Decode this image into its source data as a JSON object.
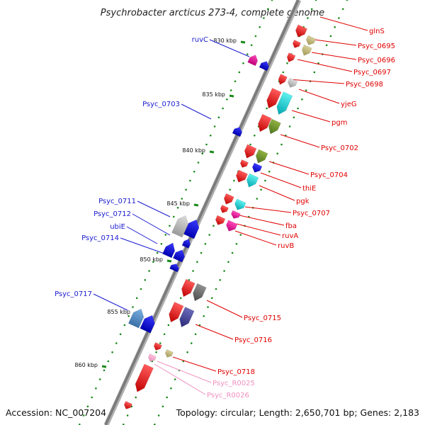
{
  "title": "Psychrobacter arcticus 273-4, complete genome",
  "footer": {
    "accession": "Accession: NC_007204",
    "topology": "Topology: circular; Length: 2,650,701 bp; Genes: 2,183"
  },
  "ticks": [
    "830 kbp",
    "835 kbp",
    "840 kbp",
    "845 kbp",
    "850 kbp",
    "855 kbp",
    "860 kbp"
  ],
  "colors": {
    "forward_label": "#e00000",
    "reverse_label": "#1a1ad0",
    "rna_label": "#f090c0",
    "backbone": "#808080",
    "tick_dots": "#1a8a1a"
  },
  "reverse_labels": [
    {
      "text": "ruvC",
      "color": "#1a1ad0"
    },
    {
      "text": "Psyc_0703",
      "color": "#1a1ad0"
    },
    {
      "text": "Psyc_0711",
      "color": "#1a1ad0"
    },
    {
      "text": "Psyc_0712",
      "color": "#1a1ad0"
    },
    {
      "text": "ubiE",
      "color": "#1a1ad0"
    },
    {
      "text": "Psyc_0714",
      "color": "#1a1ad0"
    },
    {
      "text": "Psyc_0717",
      "color": "#1a1ad0"
    }
  ],
  "forward_labels": [
    {
      "text": "glnS",
      "color": "#e00000"
    },
    {
      "text": "Psyc_0695",
      "color": "#e00000"
    },
    {
      "text": "Psyc_0696",
      "color": "#e00000"
    },
    {
      "text": "Psyc_0697",
      "color": "#e00000"
    },
    {
      "text": "Psyc_0698",
      "color": "#e00000"
    },
    {
      "text": "yjeG",
      "color": "#e00000"
    },
    {
      "text": "pgm",
      "color": "#e00000"
    },
    {
      "text": "Psyc_0702",
      "color": "#e00000"
    },
    {
      "text": "Psyc_0704",
      "color": "#e00000"
    },
    {
      "text": "thiE",
      "color": "#e00000"
    },
    {
      "text": "pgk",
      "color": "#e00000"
    },
    {
      "text": "Psyc_0707",
      "color": "#e00000"
    },
    {
      "text": "fba",
      "color": "#e00000"
    },
    {
      "text": "ruvA",
      "color": "#e00000"
    },
    {
      "text": "ruvB",
      "color": "#e00000"
    },
    {
      "text": "Psyc_0715",
      "color": "#e00000"
    },
    {
      "text": "Psyc_0716",
      "color": "#e00000"
    },
    {
      "text": "Psyc_0718",
      "color": "#e00000"
    },
    {
      "text": "Psyc_R0025",
      "color": "#f090c0"
    },
    {
      "text": "Psyc_R0026",
      "color": "#f090c0"
    }
  ]
}
